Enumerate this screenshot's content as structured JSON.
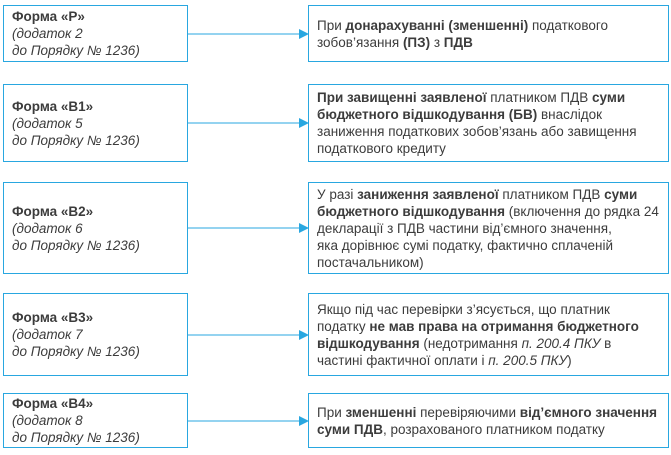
{
  "palette": {
    "box_border": "#29a7e0",
    "arrow": "#29a7e0",
    "text": "#3c3c3c",
    "background": "#ffffff"
  },
  "rows": [
    {
      "form": {
        "title": "Форма «Р»",
        "line2": "(додаток 2",
        "line3": "до Порядку № 1236)"
      },
      "desc": [
        {
          "t": "При "
        },
        {
          "t": "донарахуванні (зменшенні)",
          "b": true
        },
        {
          "t": " податкового зобов’язання "
        },
        {
          "t": "(ПЗ)",
          "b": true
        },
        {
          "t": " з "
        },
        {
          "t": "ПДВ",
          "b": true
        }
      ]
    },
    {
      "form": {
        "title": "Форма «В1»",
        "line2": "(додаток 5",
        "line3": "до Порядку № 1236)"
      },
      "desc": [
        {
          "t": "При завищенні заявленої",
          "b": true
        },
        {
          "t": " платником ПДВ "
        },
        {
          "t": "суми бюджетного відшкодування (БВ)",
          "b": true
        },
        {
          "t": " внаслідок заниження податкових зобов’язань або завищення податкового кредиту"
        }
      ]
    },
    {
      "form": {
        "title": "Форма «В2»",
        "line2": "(додаток 6",
        "line3": "до Порядку № 1236)"
      },
      "desc": [
        {
          "t": "У разі "
        },
        {
          "t": "заниження заявленої",
          "b": true
        },
        {
          "t": " платником ПДВ "
        },
        {
          "t": "суми бюджетного відшкодування",
          "b": true
        },
        {
          "t": " (включення до рядка 24 декларації з ПДВ частини від’ємного значення,"
        },
        {
          "br": true
        },
        {
          "t": "яка дорівнює сумі податку, фактично сплаченій постачальником)"
        }
      ]
    },
    {
      "form": {
        "title": "Форма «В3»",
        "line2": "(додаток 7",
        "line3": "до Порядку № 1236)"
      },
      "desc": [
        {
          "t": "Якщо під час перевірки з’ясується, що платник податку "
        },
        {
          "t": "не мав права на отримання бюджетного відшкодування",
          "b": true
        },
        {
          "t": " (недотримання "
        },
        {
          "t": "п. 200.4 ПКУ",
          "i": true
        },
        {
          "t": " в частині фактичної оплати і "
        },
        {
          "t": "п. 200.5 ПКУ",
          "i": true
        },
        {
          "t": ")"
        }
      ]
    },
    {
      "form": {
        "title": "Форма «В4»",
        "line2": "(додаток 8",
        "line3": "до Порядку № 1236)"
      },
      "desc": [
        {
          "t": "При "
        },
        {
          "t": "зменшенні",
          "b": true
        },
        {
          "t": " перевіряючими "
        },
        {
          "t": "від’ємного значення суми ПДВ",
          "b": true
        },
        {
          "t": ", розрахованого платником податку"
        }
      ]
    }
  ]
}
